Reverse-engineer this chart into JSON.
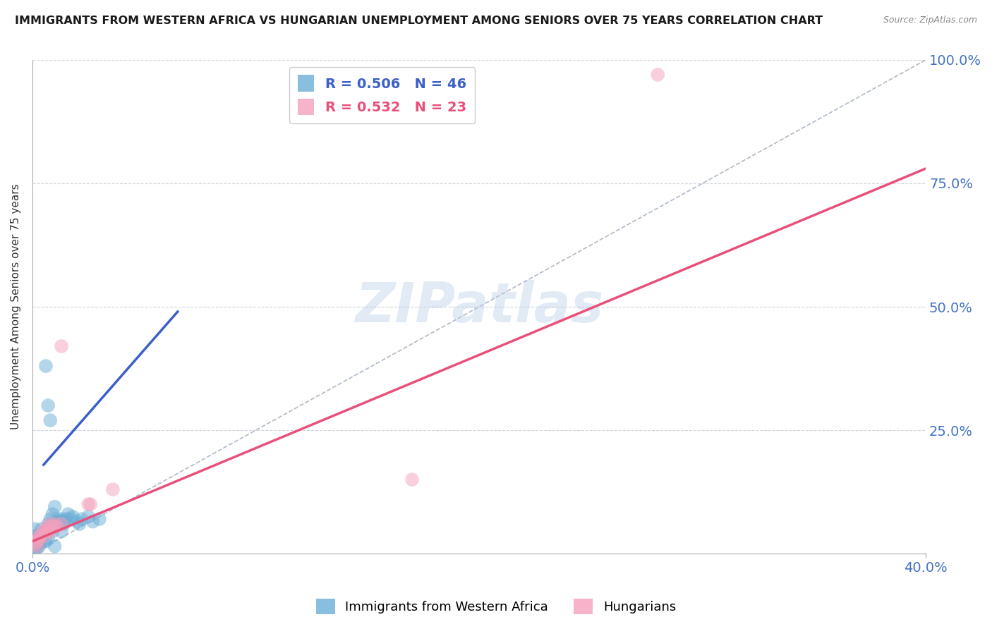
{
  "title": "IMMIGRANTS FROM WESTERN AFRICA VS HUNGARIAN UNEMPLOYMENT AMONG SENIORS OVER 75 YEARS CORRELATION CHART",
  "source": "Source: ZipAtlas.com",
  "ylabel": "Unemployment Among Seniors over 75 years",
  "xlim": [
    0.0,
    0.4
  ],
  "ylim": [
    0.0,
    1.0
  ],
  "legend_labels": [
    "Immigrants from Western Africa",
    "Hungarians"
  ],
  "watermark": "ZIPatlas",
  "blue_R": 0.506,
  "blue_N": 46,
  "pink_R": 0.532,
  "pink_N": 23,
  "blue_scatter": [
    [
      0.001,
      0.02
    ],
    [
      0.002,
      0.015
    ],
    [
      0.001,
      0.05
    ],
    [
      0.002,
      0.025
    ],
    [
      0.001,
      0.035
    ],
    [
      0.003,
      0.04
    ],
    [
      0.002,
      0.01
    ],
    [
      0.003,
      0.02
    ],
    [
      0.001,
      0.01
    ],
    [
      0.002,
      0.03
    ],
    [
      0.003,
      0.015
    ],
    [
      0.004,
      0.03
    ],
    [
      0.004,
      0.05
    ],
    [
      0.005,
      0.04
    ],
    [
      0.005,
      0.025
    ],
    [
      0.006,
      0.045
    ],
    [
      0.006,
      0.025
    ],
    [
      0.007,
      0.03
    ],
    [
      0.007,
      0.06
    ],
    [
      0.008,
      0.055
    ],
    [
      0.008,
      0.07
    ],
    [
      0.009,
      0.08
    ],
    [
      0.009,
      0.045
    ],
    [
      0.01,
      0.095
    ],
    [
      0.01,
      0.055
    ],
    [
      0.011,
      0.065
    ],
    [
      0.011,
      0.07
    ],
    [
      0.012,
      0.065
    ],
    [
      0.013,
      0.045
    ],
    [
      0.013,
      0.07
    ],
    [
      0.014,
      0.065
    ],
    [
      0.014,
      0.06
    ],
    [
      0.015,
      0.07
    ],
    [
      0.016,
      0.08
    ],
    [
      0.017,
      0.07
    ],
    [
      0.018,
      0.075
    ],
    [
      0.02,
      0.065
    ],
    [
      0.021,
      0.06
    ],
    [
      0.022,
      0.07
    ],
    [
      0.025,
      0.075
    ],
    [
      0.027,
      0.065
    ],
    [
      0.03,
      0.07
    ],
    [
      0.006,
      0.38
    ],
    [
      0.007,
      0.3
    ],
    [
      0.008,
      0.27
    ],
    [
      0.01,
      0.015
    ]
  ],
  "pink_scatter": [
    [
      0.001,
      0.02
    ],
    [
      0.002,
      0.025
    ],
    [
      0.002,
      0.015
    ],
    [
      0.003,
      0.03
    ],
    [
      0.003,
      0.035
    ],
    [
      0.004,
      0.04
    ],
    [
      0.005,
      0.035
    ],
    [
      0.005,
      0.045
    ],
    [
      0.006,
      0.05
    ],
    [
      0.007,
      0.055
    ],
    [
      0.007,
      0.045
    ],
    [
      0.008,
      0.045
    ],
    [
      0.008,
      0.06
    ],
    [
      0.009,
      0.055
    ],
    [
      0.01,
      0.06
    ],
    [
      0.011,
      0.055
    ],
    [
      0.013,
      0.06
    ],
    [
      0.013,
      0.42
    ],
    [
      0.025,
      0.1
    ],
    [
      0.026,
      0.1
    ],
    [
      0.036,
      0.13
    ],
    [
      0.28,
      0.97
    ],
    [
      0.17,
      0.15
    ]
  ],
  "blue_line_x": [
    0.005,
    0.065
  ],
  "blue_line_y": [
    0.18,
    0.49
  ],
  "pink_line_x": [
    0.0,
    0.4
  ],
  "pink_line_y": [
    0.025,
    0.78
  ],
  "ref_line_x": [
    0.0,
    0.4
  ],
  "ref_line_y": [
    0.0,
    1.0
  ],
  "bg_color": "#ffffff",
  "scatter_blue": "#6baed6",
  "scatter_pink": "#f4a0bc",
  "trend_blue": "#3a5fc8",
  "trend_pink": "#e8507a",
  "ref_color": "#b0b8c8",
  "grid_color": "#d0d5dd",
  "title_color": "#1a1a1a",
  "tick_label_color": "#4472c4"
}
